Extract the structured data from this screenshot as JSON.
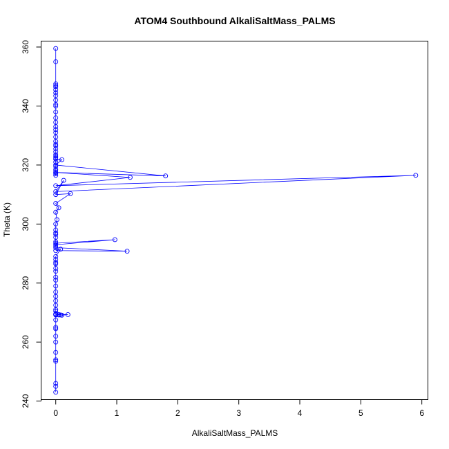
{
  "chart_data": {
    "type": "scatter",
    "title": "ATOM4 Southbound AlkaliSaltMass_PALMS",
    "xlabel": "AlkaliSaltMass_PALMS",
    "ylabel": "Theta (K)",
    "xlim": [
      -0.24,
      6.1
    ],
    "ylim": [
      240.5,
      362
    ],
    "x_ticks": [
      0,
      1,
      2,
      3,
      4,
      5,
      6
    ],
    "y_ticks": [
      240,
      260,
      280,
      300,
      320,
      340,
      360
    ],
    "grid": false,
    "legend": "none",
    "mode": "lines+markers",
    "color": "#0000ff",
    "series": [
      {
        "x": [
          0,
          0,
          0,
          0,
          0,
          0,
          0,
          0,
          0,
          0,
          0,
          0,
          0,
          0,
          0,
          0,
          0,
          0,
          0,
          0,
          0,
          0,
          0,
          0,
          0,
          0,
          0,
          0,
          0,
          0,
          0,
          0,
          0,
          0,
          0,
          0,
          0.1,
          0,
          1.8,
          0,
          1.22,
          0,
          5.9,
          0,
          0.13,
          0,
          0.24,
          0,
          0.05,
          0,
          0.02,
          0,
          0,
          0,
          0,
          0,
          0,
          0,
          0.97,
          0,
          0,
          0,
          1.17,
          0,
          0.08,
          0,
          0,
          0,
          0,
          0,
          0,
          0,
          0,
          0,
          0,
          0,
          0,
          0,
          0,
          0,
          0,
          0,
          0,
          0.05,
          0,
          0.2,
          0.1,
          0.08,
          0.05,
          0,
          0,
          0,
          0,
          0,
          0,
          0,
          0,
          0,
          0,
          0,
          0
        ],
        "y": [
          359.5,
          355,
          347.5,
          347,
          346.5,
          345.5,
          344.5,
          343.5,
          342,
          340.5,
          340,
          338,
          336,
          334.5,
          333,
          332,
          331,
          329.5,
          328,
          327,
          326.5,
          325.5,
          324.5,
          323.5,
          323,
          322.5,
          322,
          321,
          320,
          319.5,
          318.5,
          318,
          317.5,
          317,
          316.5,
          322,
          321.8,
          320,
          316.3,
          317.5,
          315.8,
          313,
          316.5,
          311,
          314.8,
          310,
          310.3,
          307,
          305.5,
          304,
          301.5,
          300,
          298,
          297,
          296.5,
          295.5,
          294,
          293.5,
          294.7,
          293,
          292.5,
          292,
          290.8,
          291,
          291.5,
          289,
          288,
          287,
          286.5,
          285,
          284,
          282,
          281,
          279,
          277,
          275.5,
          274,
          272.5,
          271,
          270.5,
          269.5,
          269.3,
          269.2,
          269.2,
          269.5,
          269.3,
          269.1,
          269.2,
          269.3,
          269.5,
          267.5,
          265,
          264.5,
          262,
          260,
          256.5,
          254,
          253.5,
          246,
          245,
          243
        ]
      }
    ]
  }
}
